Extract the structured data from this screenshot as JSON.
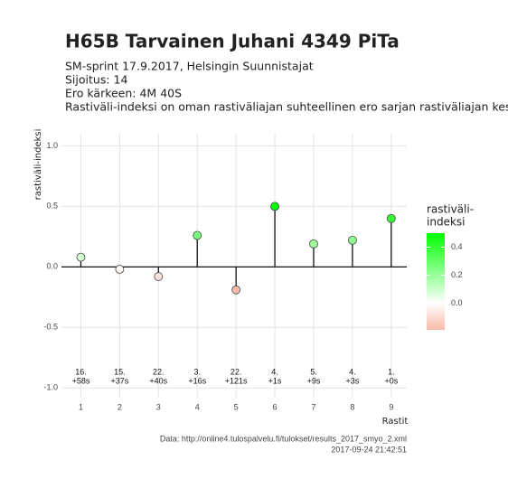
{
  "chart_data": {
    "type": "lollipop",
    "title": "H65B Tarvainen Juhani 4349 PiTa",
    "subtitle": [
      "SM-sprint 17.9.2017, Helsingin Suunnistajat",
      "Sijoitus: 14",
      "Ero kärkeen: 4M 40S",
      "Rastiväli-indeksi on oman rastiväliajan suhteellinen ero sarjan rastiväliajan keskiarvoon"
    ],
    "x_label": "Rastit",
    "y_label": "rastiväli-indeksi",
    "x": [
      1,
      2,
      3,
      4,
      5,
      6,
      7,
      8,
      9
    ],
    "values": [
      0.08,
      -0.02,
      -0.08,
      0.26,
      -0.19,
      0.5,
      0.19,
      0.22,
      0.4
    ],
    "annotations": [
      {
        "rank": "16.",
        "diff": "+58s"
      },
      {
        "rank": "15.",
        "diff": "+37s"
      },
      {
        "rank": "22.",
        "diff": "+40s"
      },
      {
        "rank": "3.",
        "diff": "+16s"
      },
      {
        "rank": "22.",
        "diff": "+121s"
      },
      {
        "rank": "4.",
        "diff": "+1s"
      },
      {
        "rank": "5.",
        "diff": "+9s"
      },
      {
        "rank": "4.",
        "diff": "+3s"
      },
      {
        "rank": "1.",
        "diff": "+0s"
      }
    ],
    "xlim": [
      0.5,
      9.4
    ],
    "xticks": [
      1,
      2,
      3,
      4,
      5,
      6,
      7,
      8,
      9
    ],
    "ylim": [
      -1.08,
      1.1
    ],
    "yticks": [
      {
        "value": -1,
        "label": "-1.0"
      },
      {
        "value": -0.5,
        "label": "-0.5"
      },
      {
        "value": 0,
        "label": "0.0"
      },
      {
        "value": 0.5,
        "label": "0.5"
      },
      {
        "value": 1,
        "label": "1.0"
      }
    ],
    "grid": true,
    "legend": {
      "title": [
        "rastiväli-",
        "indeksi"
      ],
      "limits": [
        -0.19,
        0.5
      ],
      "ticks": [
        {
          "value": 0,
          "label": "0.0"
        },
        {
          "value": 0.2,
          "label": "0.2"
        },
        {
          "value": 0.4,
          "label": "0.4"
        }
      ],
      "colors": [
        "#f8b9a8",
        "#ffffff",
        "#00ff00"
      ]
    },
    "caption": [
      "Data: http://online4.tulospalvelu.fi/tulokset/results_2017_smyo_2.xml",
      "2017-09-24 21:42:51"
    ]
  }
}
